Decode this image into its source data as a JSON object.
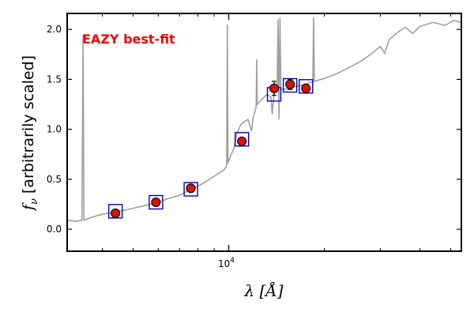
{
  "chart_data": {
    "type": "scatter",
    "x_scale": "log",
    "xlim": [
      3100,
      54000
    ],
    "ylim": [
      -0.22,
      2.16
    ],
    "xlabel": "λ [Å]",
    "ylabel_symbol": "f",
    "ylabel_sub": "ν",
    "ylabel_rest": " [arbitrarily scaled]",
    "x_ticks": [
      {
        "value": 10000,
        "base": "10",
        "exp": "4"
      }
    ],
    "y_ticks": [
      {
        "value": 0.0,
        "label": "0.0"
      },
      {
        "value": 0.5,
        "label": "0.5"
      },
      {
        "value": 1.0,
        "label": "1.0"
      },
      {
        "value": 1.5,
        "label": "1.5"
      },
      {
        "value": 2.0,
        "label": "2.0"
      }
    ],
    "annotation": {
      "text": "EAZY best-fit",
      "color": "#ff0000"
    },
    "colors": {
      "sed": "#a0a0a0",
      "observed": "#dd1100",
      "model": "#0000cc"
    },
    "observed": [
      {
        "x": 4400,
        "y": 0.16,
        "err": 0.0
      },
      {
        "x": 5900,
        "y": 0.27,
        "err": 0.0
      },
      {
        "x": 7600,
        "y": 0.41,
        "err": 0.0
      },
      {
        "x": 11000,
        "y": 0.88,
        "err": 0.0
      },
      {
        "x": 13900,
        "y": 1.41,
        "err": 0.07
      },
      {
        "x": 15600,
        "y": 1.45,
        "err": 0.05
      },
      {
        "x": 17500,
        "y": 1.41,
        "err": 0.04
      }
    ],
    "model": [
      {
        "x": 4400,
        "y": 0.18
      },
      {
        "x": 5900,
        "y": 0.27
      },
      {
        "x": 7600,
        "y": 0.4
      },
      {
        "x": 11000,
        "y": 0.9
      },
      {
        "x": 13900,
        "y": 1.35
      },
      {
        "x": 15600,
        "y": 1.44
      },
      {
        "x": 17500,
        "y": 1.43
      }
    ],
    "sed": [
      [
        3100,
        0.09
      ],
      [
        3300,
        0.08
      ],
      [
        3450,
        0.09
      ],
      [
        3480,
        1.95
      ],
      [
        3500,
        0.09
      ],
      [
        3700,
        0.12
      ],
      [
        4000,
        0.15
      ],
      [
        4400,
        0.17
      ],
      [
        5000,
        0.21
      ],
      [
        5500,
        0.24
      ],
      [
        6000,
        0.27
      ],
      [
        6500,
        0.31
      ],
      [
        7000,
        0.34
      ],
      [
        7600,
        0.4
      ],
      [
        8200,
        0.45
      ],
      [
        8800,
        0.51
      ],
      [
        9300,
        0.56
      ],
      [
        9700,
        0.6
      ],
      [
        9850,
        0.64
      ],
      [
        9900,
        2.05
      ],
      [
        9950,
        0.66
      ],
      [
        10100,
        0.72
      ],
      [
        10400,
        0.82
      ],
      [
        10600,
        0.95
      ],
      [
        10800,
        1.02
      ],
      [
        11000,
        1.06
      ],
      [
        11500,
        1.1
      ],
      [
        11800,
        0.98
      ],
      [
        11900,
        1.1
      ],
      [
        12200,
        1.22
      ],
      [
        12250,
        1.7
      ],
      [
        12300,
        1.25
      ],
      [
        12700,
        1.3
      ],
      [
        13200,
        1.35
      ],
      [
        13600,
        1.32
      ],
      [
        13700,
        1.15
      ],
      [
        13900,
        1.36
      ],
      [
        14200,
        1.38
      ],
      [
        14300,
        2.1
      ],
      [
        14400,
        1.1
      ],
      [
        14500,
        2.12
      ],
      [
        14600,
        1.4
      ],
      [
        15000,
        1.4
      ],
      [
        15600,
        1.42
      ],
      [
        16400,
        1.43
      ],
      [
        17500,
        1.45
      ],
      [
        18000,
        1.47
      ],
      [
        18400,
        1.47
      ],
      [
        18500,
        2.12
      ],
      [
        18600,
        1.48
      ],
      [
        20000,
        1.51
      ],
      [
        22000,
        1.56
      ],
      [
        24000,
        1.62
      ],
      [
        26000,
        1.68
      ],
      [
        28000,
        1.75
      ],
      [
        30000,
        1.83
      ],
      [
        31000,
        1.76
      ],
      [
        32000,
        1.9
      ],
      [
        34000,
        1.97
      ],
      [
        36000,
        2.02
      ],
      [
        38000,
        1.96
      ],
      [
        40000,
        2.03
      ],
      [
        44000,
        2.07
      ],
      [
        48000,
        2.04
      ],
      [
        51000,
        2.09
      ],
      [
        54000,
        2.07
      ]
    ]
  }
}
